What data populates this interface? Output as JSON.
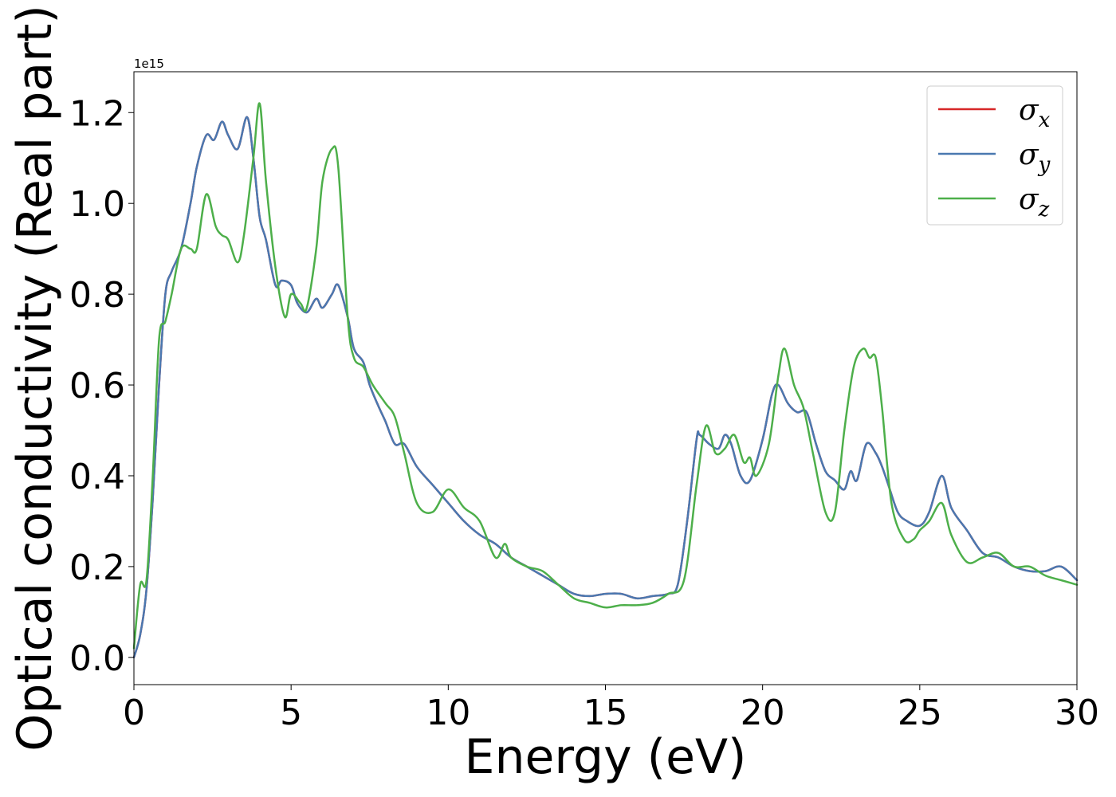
{
  "chart_data": {
    "type": "line",
    "xlabel": "Energy (eV)",
    "ylabel": "Optical conductivity (Real part)",
    "y_offset_label": "1e15",
    "y_scale": 1000000000000000.0,
    "xlim": [
      0,
      30
    ],
    "ylim": [
      -0.06,
      1.29
    ],
    "x_ticks": [
      0,
      5,
      10,
      15,
      20,
      25,
      30
    ],
    "x_tick_labels": [
      "0",
      "5",
      "10",
      "15",
      "20",
      "25",
      "30"
    ],
    "y_ticks": [
      0.0,
      0.2,
      0.4,
      0.6,
      0.8,
      1.0,
      1.2
    ],
    "y_tick_labels": [
      "0.0",
      "0.2",
      "0.4",
      "0.6",
      "0.8",
      "1.0",
      "1.2"
    ],
    "grid": false,
    "legend_position": "top-right",
    "series": [
      {
        "name": "σx",
        "symbol": "σ",
        "subscript": "x",
        "color": "#d62728",
        "x": [
          0,
          0.2,
          0.4,
          0.6,
          0.8,
          1.0,
          1.2,
          1.5,
          1.8,
          2.0,
          2.3,
          2.55,
          2.8,
          3.0,
          3.3,
          3.6,
          3.8,
          4.0,
          4.2,
          4.5,
          4.7,
          5.0,
          5.2,
          5.5,
          5.8,
          6.0,
          6.3,
          6.5,
          6.8,
          7.0,
          7.3,
          7.5,
          7.8,
          8.0,
          8.3,
          8.6,
          9.0,
          9.5,
          10.0,
          10.5,
          11.0,
          11.5,
          12.0,
          12.5,
          13.0,
          13.5,
          14.0,
          14.5,
          15.0,
          15.5,
          16.0,
          16.5,
          17.0,
          17.3,
          17.6,
          17.9,
          18.0,
          18.3,
          18.6,
          18.8,
          19.0,
          19.3,
          19.6,
          20.0,
          20.3,
          20.5,
          20.8,
          21.1,
          21.4,
          21.7,
          22.0,
          22.3,
          22.6,
          22.8,
          23.0,
          23.3,
          23.6,
          23.8,
          24.0,
          24.3,
          24.6,
          25.0,
          25.3,
          25.7,
          26.0,
          26.5,
          27.0,
          27.5,
          28.0,
          28.5,
          29.0,
          29.5,
          30.0
        ],
        "y": [
          0.0,
          0.05,
          0.15,
          0.35,
          0.6,
          0.8,
          0.85,
          0.9,
          1.0,
          1.08,
          1.15,
          1.14,
          1.18,
          1.15,
          1.12,
          1.19,
          1.1,
          0.97,
          0.92,
          0.82,
          0.83,
          0.82,
          0.78,
          0.76,
          0.79,
          0.77,
          0.8,
          0.82,
          0.75,
          0.68,
          0.65,
          0.6,
          0.55,
          0.52,
          0.47,
          0.47,
          0.42,
          0.38,
          0.34,
          0.3,
          0.27,
          0.25,
          0.22,
          0.2,
          0.18,
          0.16,
          0.14,
          0.135,
          0.14,
          0.14,
          0.13,
          0.135,
          0.14,
          0.16,
          0.3,
          0.48,
          0.49,
          0.47,
          0.46,
          0.49,
          0.47,
          0.4,
          0.39,
          0.48,
          0.58,
          0.6,
          0.56,
          0.54,
          0.54,
          0.47,
          0.41,
          0.39,
          0.37,
          0.41,
          0.39,
          0.47,
          0.45,
          0.42,
          0.38,
          0.32,
          0.3,
          0.29,
          0.32,
          0.4,
          0.33,
          0.28,
          0.23,
          0.22,
          0.2,
          0.19,
          0.19,
          0.2,
          0.17
        ]
      },
      {
        "name": "σy",
        "symbol": "σ",
        "subscript": "y",
        "color": "#4a78b0",
        "x": [
          0,
          0.2,
          0.4,
          0.6,
          0.8,
          1.0,
          1.2,
          1.5,
          1.8,
          2.0,
          2.3,
          2.55,
          2.8,
          3.0,
          3.3,
          3.6,
          3.8,
          4.0,
          4.2,
          4.5,
          4.7,
          5.0,
          5.2,
          5.5,
          5.8,
          6.0,
          6.3,
          6.5,
          6.8,
          7.0,
          7.3,
          7.5,
          7.8,
          8.0,
          8.3,
          8.6,
          9.0,
          9.5,
          10.0,
          10.5,
          11.0,
          11.5,
          12.0,
          12.5,
          13.0,
          13.5,
          14.0,
          14.5,
          15.0,
          15.5,
          16.0,
          16.5,
          17.0,
          17.3,
          17.6,
          17.9,
          18.0,
          18.3,
          18.6,
          18.8,
          19.0,
          19.3,
          19.6,
          20.0,
          20.3,
          20.5,
          20.8,
          21.1,
          21.4,
          21.7,
          22.0,
          22.3,
          22.6,
          22.8,
          23.0,
          23.3,
          23.6,
          23.8,
          24.0,
          24.3,
          24.6,
          25.0,
          25.3,
          25.7,
          26.0,
          26.5,
          27.0,
          27.5,
          28.0,
          28.5,
          29.0,
          29.5,
          30.0
        ],
        "y": [
          0.0,
          0.05,
          0.15,
          0.35,
          0.6,
          0.8,
          0.85,
          0.9,
          1.0,
          1.08,
          1.15,
          1.14,
          1.18,
          1.15,
          1.12,
          1.19,
          1.1,
          0.97,
          0.92,
          0.82,
          0.83,
          0.82,
          0.78,
          0.76,
          0.79,
          0.77,
          0.8,
          0.82,
          0.75,
          0.68,
          0.65,
          0.6,
          0.55,
          0.52,
          0.47,
          0.47,
          0.42,
          0.38,
          0.34,
          0.3,
          0.27,
          0.25,
          0.22,
          0.2,
          0.18,
          0.16,
          0.14,
          0.135,
          0.14,
          0.14,
          0.13,
          0.135,
          0.14,
          0.16,
          0.3,
          0.48,
          0.49,
          0.47,
          0.46,
          0.49,
          0.47,
          0.4,
          0.39,
          0.48,
          0.58,
          0.6,
          0.56,
          0.54,
          0.54,
          0.47,
          0.41,
          0.39,
          0.37,
          0.41,
          0.39,
          0.47,
          0.45,
          0.42,
          0.38,
          0.32,
          0.3,
          0.29,
          0.32,
          0.4,
          0.33,
          0.28,
          0.23,
          0.22,
          0.2,
          0.19,
          0.19,
          0.2,
          0.17
        ]
      },
      {
        "name": "σz",
        "symbol": "σ",
        "subscript": "z",
        "color": "#4daf4a",
        "x": [
          0,
          0.2,
          0.4,
          0.6,
          0.8,
          1.0,
          1.2,
          1.5,
          1.8,
          2.0,
          2.3,
          2.6,
          2.8,
          3.0,
          3.3,
          3.5,
          3.8,
          4.0,
          4.2,
          4.5,
          4.8,
          5.0,
          5.3,
          5.5,
          5.8,
          6.0,
          6.3,
          6.5,
          6.8,
          7.0,
          7.3,
          7.6,
          8.0,
          8.3,
          8.6,
          9.0,
          9.5,
          10.0,
          10.5,
          11.0,
          11.5,
          11.8,
          12.0,
          12.5,
          13.0,
          13.5,
          14.0,
          14.5,
          15.0,
          15.5,
          16.0,
          16.5,
          17.0,
          17.5,
          17.9,
          18.2,
          18.5,
          18.8,
          19.1,
          19.4,
          19.6,
          19.8,
          20.2,
          20.5,
          20.7,
          21.0,
          21.3,
          21.6,
          22.0,
          22.3,
          22.6,
          22.9,
          23.2,
          23.4,
          23.6,
          23.8,
          24.1,
          24.5,
          24.8,
          25.0,
          25.3,
          25.7,
          26.0,
          26.5,
          27.0,
          27.5,
          28.0,
          28.5,
          29.0,
          29.5,
          30.0
        ],
        "y": [
          0.02,
          0.16,
          0.17,
          0.4,
          0.7,
          0.74,
          0.8,
          0.9,
          0.9,
          0.9,
          1.02,
          0.95,
          0.93,
          0.92,
          0.87,
          0.93,
          1.1,
          1.22,
          1.05,
          0.86,
          0.75,
          0.8,
          0.78,
          0.77,
          0.9,
          1.05,
          1.12,
          1.08,
          0.75,
          0.66,
          0.64,
          0.6,
          0.56,
          0.53,
          0.45,
          0.34,
          0.32,
          0.37,
          0.33,
          0.3,
          0.22,
          0.25,
          0.22,
          0.2,
          0.19,
          0.16,
          0.13,
          0.12,
          0.11,
          0.115,
          0.115,
          0.12,
          0.14,
          0.17,
          0.38,
          0.51,
          0.45,
          0.46,
          0.49,
          0.43,
          0.44,
          0.4,
          0.47,
          0.62,
          0.68,
          0.6,
          0.55,
          0.45,
          0.32,
          0.32,
          0.5,
          0.64,
          0.68,
          0.66,
          0.66,
          0.55,
          0.34,
          0.26,
          0.26,
          0.28,
          0.3,
          0.34,
          0.27,
          0.21,
          0.22,
          0.23,
          0.2,
          0.2,
          0.18,
          0.17,
          0.16
        ]
      }
    ]
  }
}
